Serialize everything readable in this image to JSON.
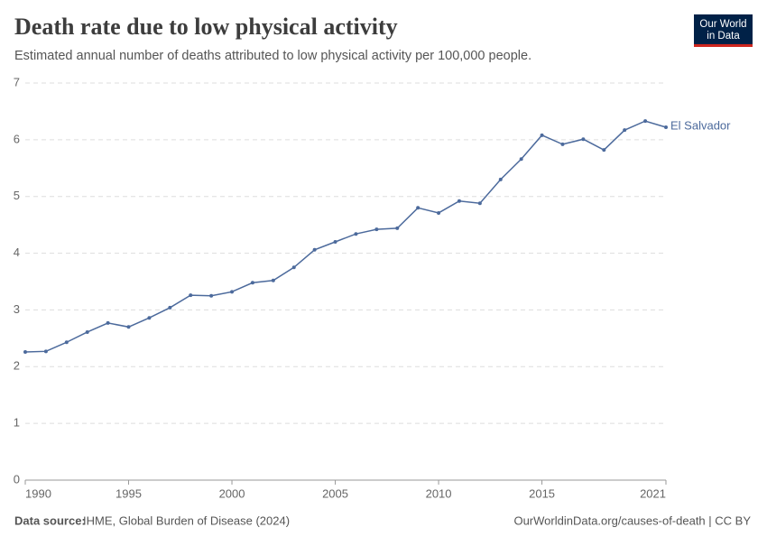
{
  "header": {
    "title": "Death rate due to low physical activity",
    "subtitle": "Estimated annual number of deaths attributed to low physical activity per 100,000 people.",
    "logo": [
      "Our World",
      "in Data"
    ]
  },
  "chart_data": {
    "type": "line",
    "x": [
      1990,
      1991,
      1992,
      1993,
      1994,
      1995,
      1996,
      1997,
      1998,
      1999,
      2000,
      2001,
      2002,
      2003,
      2004,
      2005,
      2006,
      2007,
      2008,
      2009,
      2010,
      2011,
      2012,
      2013,
      2014,
      2015,
      2016,
      2017,
      2018,
      2019,
      2020,
      2021
    ],
    "series": [
      {
        "name": "El Salvador",
        "color": "#4c6a9c",
        "values": [
          2.26,
          2.27,
          2.43,
          2.61,
          2.77,
          2.7,
          2.86,
          3.04,
          3.26,
          3.25,
          3.32,
          3.48,
          3.52,
          3.75,
          4.06,
          4.2,
          4.34,
          4.42,
          4.44,
          4.8,
          4.71,
          4.92,
          4.88,
          5.3,
          5.66,
          6.08,
          5.92,
          6.01,
          5.82,
          6.17,
          6.33,
          6.22
        ]
      }
    ],
    "xlim": [
      1990,
      2021
    ],
    "xticks": [
      1990,
      1995,
      2000,
      2005,
      2010,
      2015,
      2021
    ],
    "ylim": [
      0,
      7
    ],
    "yticks": [
      0,
      1,
      2,
      3,
      4,
      5,
      6,
      7
    ],
    "grid": true
  },
  "footer": {
    "source_label": "Data source:",
    "source": "IHME, Global Burden of Disease (2024)",
    "link": "OurWorldinData.org/causes-of-death | CC BY"
  }
}
